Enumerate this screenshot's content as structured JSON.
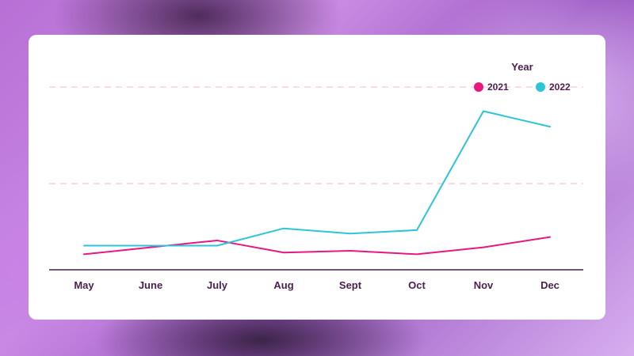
{
  "chart_data": {
    "type": "line",
    "categories": [
      "May",
      "June",
      "July",
      "Aug",
      "Sept",
      "Oct",
      "Nov",
      "Dec"
    ],
    "series": [
      {
        "name": "2021",
        "color": "#e8197e",
        "values": [
          9,
          13,
          17,
          10,
          11,
          9,
          13,
          19
        ]
      },
      {
        "name": "2022",
        "color": "#2ec4d8",
        "values": [
          14,
          14,
          14,
          24,
          21,
          23,
          92,
          83
        ]
      }
    ],
    "legend": {
      "title": "Year",
      "placement": "top-right"
    },
    "ylim": [
      0,
      106
    ],
    "gridlines": [
      50,
      106
    ],
    "grid": true,
    "axis_color": "#4a1f4f",
    "grid_color": "#f4c9da"
  }
}
